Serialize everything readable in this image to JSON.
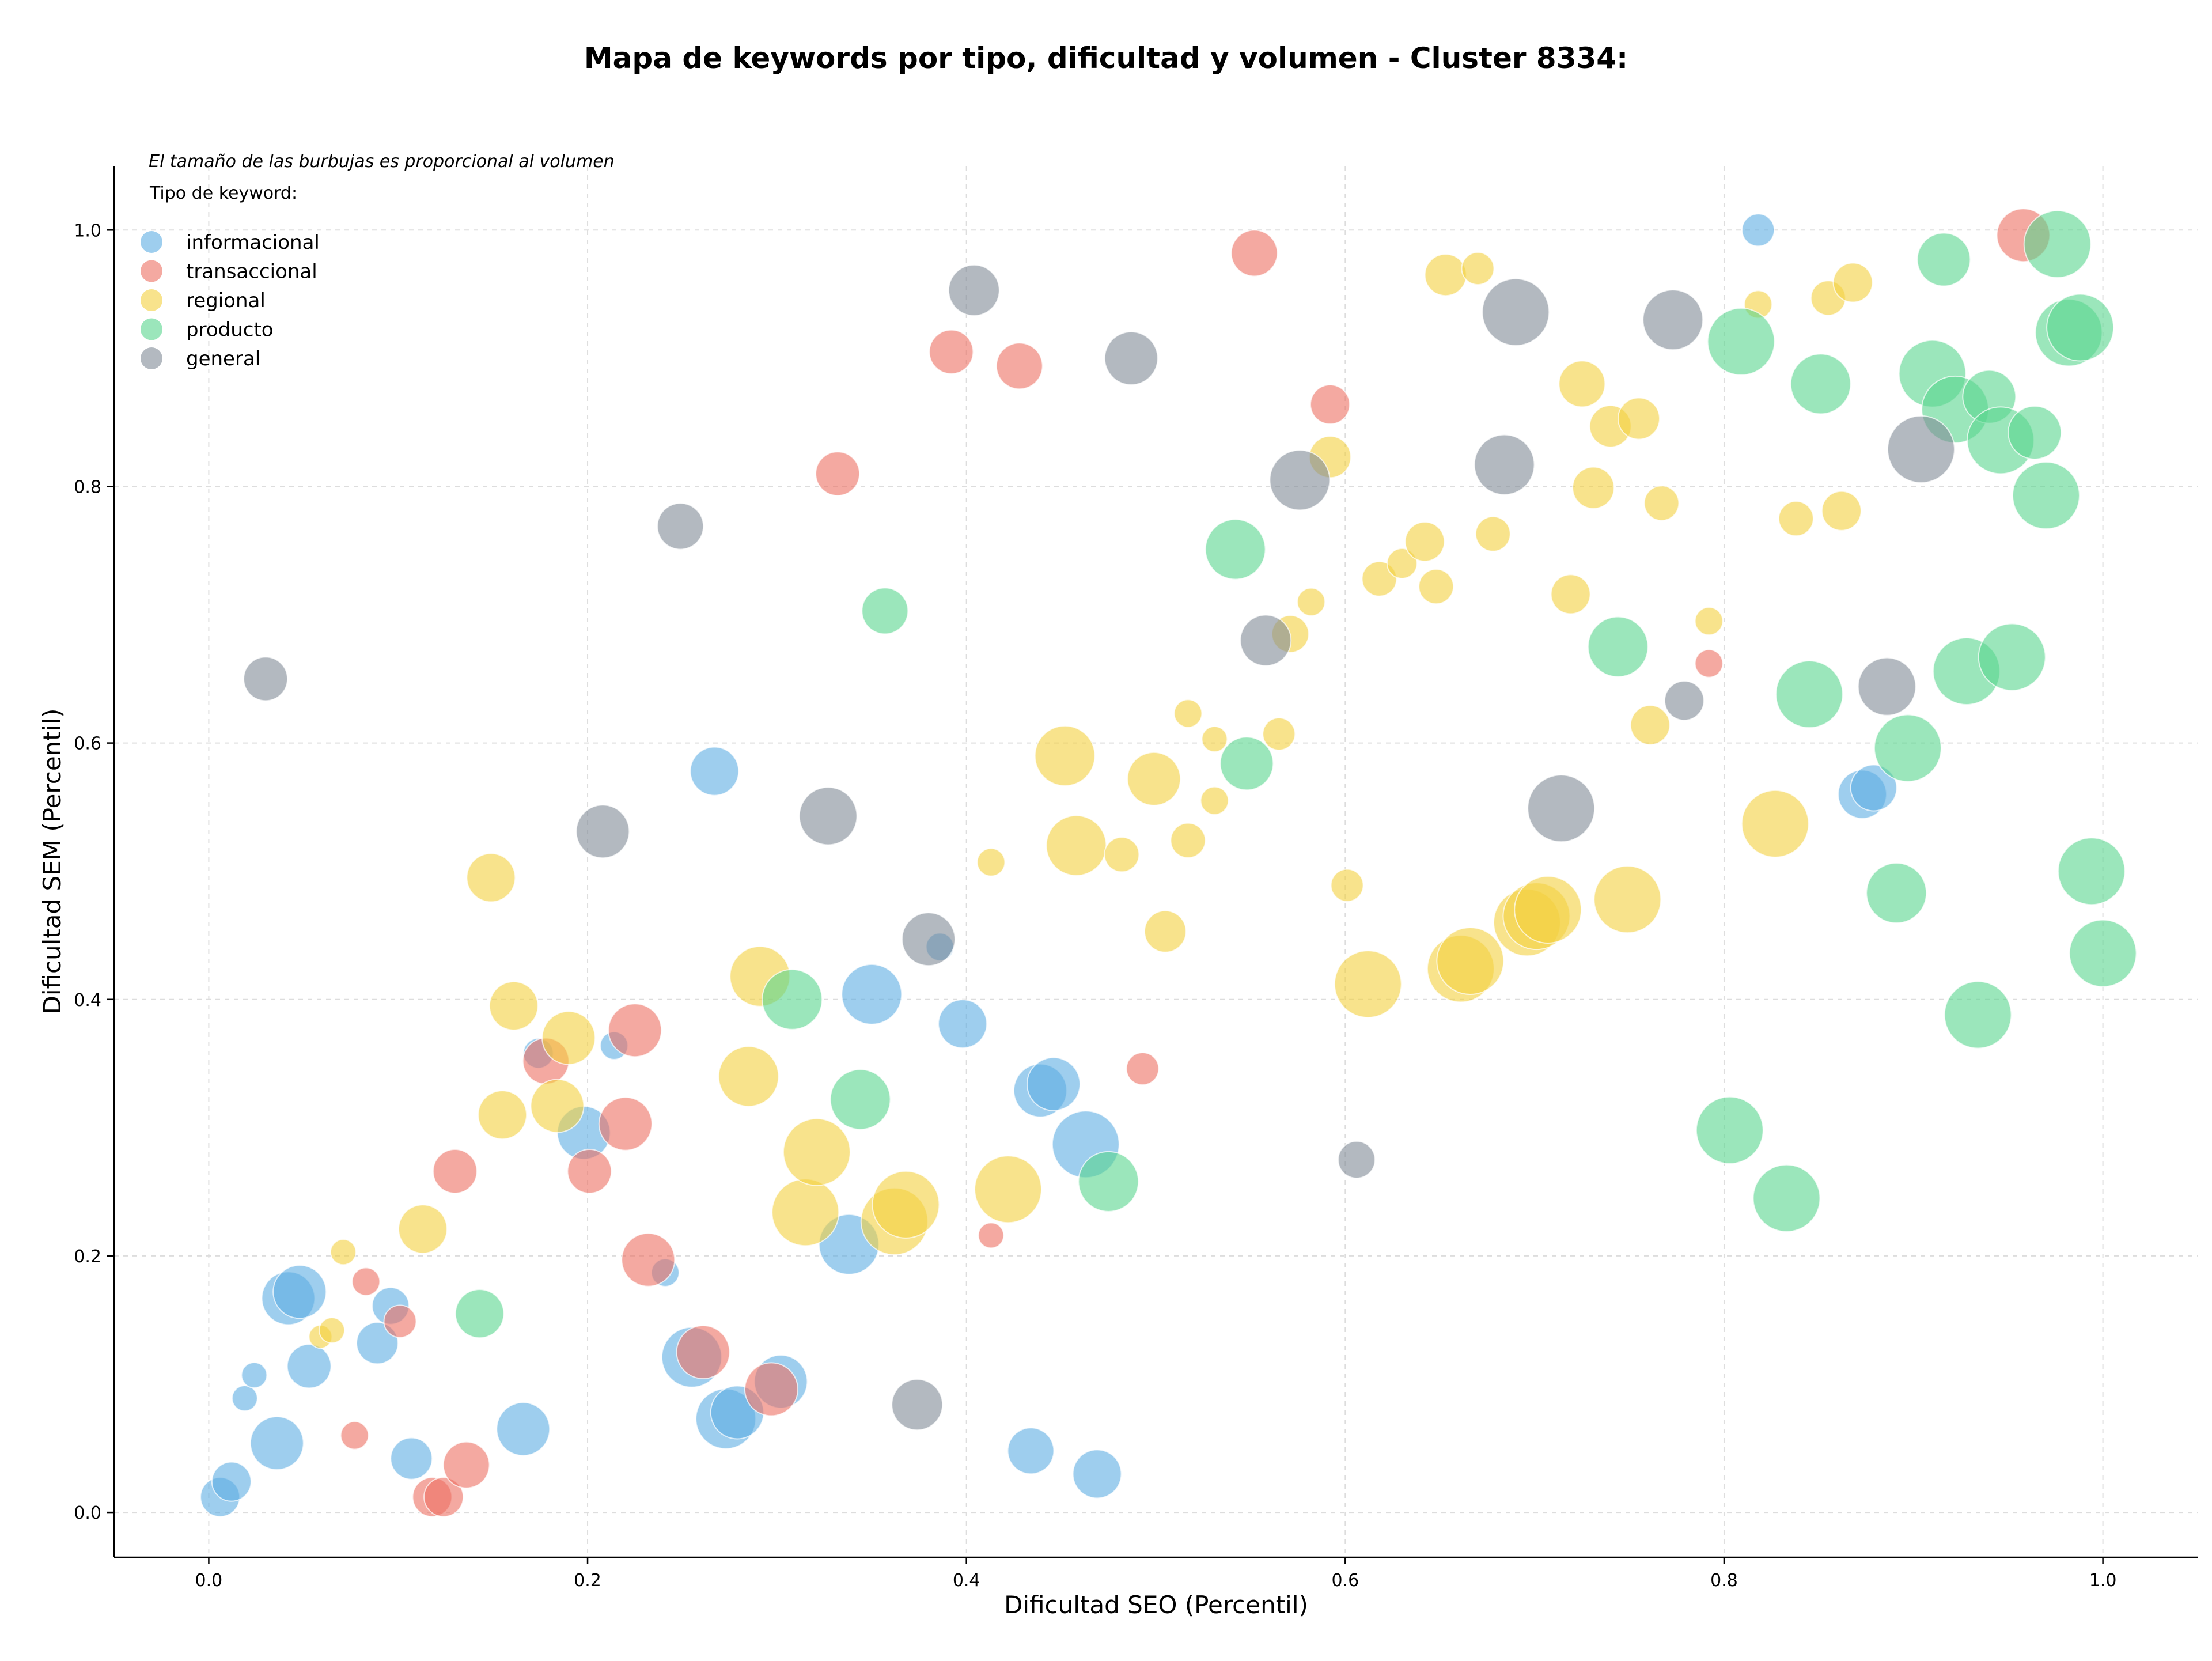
{
  "chart_data": {
    "type": "scatter",
    "title": "Mapa de keywords por tipo, dificultad y volumen - Cluster 8334:",
    "xlabel": "Dificultad SEO (Percentil)",
    "ylabel": "Dificultad SEM (Percentil)",
    "xlim": [
      -0.05,
      1.05
    ],
    "ylim": [
      -0.035,
      1.05
    ],
    "xticks": [
      "0.0",
      "0.2",
      "0.4",
      "0.6",
      "0.8",
      "1.0"
    ],
    "yticks": [
      "0.0",
      "0.2",
      "0.4",
      "0.6",
      "0.8",
      "1.0"
    ],
    "grid": true,
    "size_note": "El tamaño de las burbujas es proporcional al volumen",
    "legend_title": "Tipo de keyword:",
    "legend_position": "top-left",
    "series": [
      {
        "name": "informacional",
        "color": "#5dade2",
        "points": [
          [
            0.006,
            0.012,
            34
          ],
          [
            0.012,
            0.024,
            34
          ],
          [
            0.019,
            0.089,
            22
          ],
          [
            0.024,
            0.107,
            22
          ],
          [
            0.036,
            0.054,
            46
          ],
          [
            0.042,
            0.167,
            46
          ],
          [
            0.048,
            0.172,
            46
          ],
          [
            0.053,
            0.114,
            38
          ],
          [
            0.089,
            0.132,
            36
          ],
          [
            0.096,
            0.161,
            32
          ],
          [
            0.107,
            0.042,
            36
          ],
          [
            0.166,
            0.065,
            46
          ],
          [
            0.174,
            0.358,
            26
          ],
          [
            0.198,
            0.296,
            46
          ],
          [
            0.214,
            0.364,
            24
          ],
          [
            0.241,
            0.187,
            24
          ],
          [
            0.255,
            0.121,
            52
          ],
          [
            0.267,
            0.578,
            42
          ],
          [
            0.273,
            0.073,
            52
          ],
          [
            0.279,
            0.078,
            46
          ],
          [
            0.302,
            0.102,
            46
          ],
          [
            0.338,
            0.209,
            52
          ],
          [
            0.35,
            0.404,
            52
          ],
          [
            0.386,
            0.441,
            24
          ],
          [
            0.398,
            0.381,
            42
          ],
          [
            0.434,
            0.048,
            40
          ],
          [
            0.439,
            0.329,
            46
          ],
          [
            0.446,
            0.334,
            46
          ],
          [
            0.463,
            0.287,
            58
          ],
          [
            0.469,
            0.03,
            42
          ],
          [
            0.818,
            1.0,
            28
          ],
          [
            0.873,
            0.56,
            42
          ],
          [
            0.879,
            0.565,
            40
          ]
        ]
      },
      {
        "name": "transaccional",
        "color": "#ec7063",
        "points": [
          [
            0.077,
            0.06,
            24
          ],
          [
            0.083,
            0.18,
            24
          ],
          [
            0.101,
            0.149,
            28
          ],
          [
            0.118,
            0.012,
            34
          ],
          [
            0.124,
            0.012,
            34
          ],
          [
            0.13,
            0.266,
            38
          ],
          [
            0.136,
            0.037,
            40
          ],
          [
            0.178,
            0.352,
            40
          ],
          [
            0.201,
            0.266,
            38
          ],
          [
            0.22,
            0.303,
            46
          ],
          [
            0.225,
            0.376,
            46
          ],
          [
            0.232,
            0.197,
            46
          ],
          [
            0.261,
            0.125,
            46
          ],
          [
            0.297,
            0.096,
            46
          ],
          [
            0.332,
            0.81,
            38
          ],
          [
            0.392,
            0.905,
            38
          ],
          [
            0.413,
            0.216,
            22
          ],
          [
            0.428,
            0.894,
            40
          ],
          [
            0.493,
            0.346,
            28
          ],
          [
            0.552,
            0.982,
            40
          ],
          [
            0.592,
            0.864,
            34
          ],
          [
            0.792,
            0.662,
            24
          ],
          [
            0.958,
            0.996,
            46
          ]
        ]
      },
      {
        "name": "regional",
        "color": "#f4d03f",
        "points": [
          [
            0.059,
            0.137,
            20
          ],
          [
            0.065,
            0.142,
            22
          ],
          [
            0.071,
            0.203,
            22
          ],
          [
            0.113,
            0.221,
            42
          ],
          [
            0.149,
            0.495,
            42
          ],
          [
            0.155,
            0.31,
            42
          ],
          [
            0.161,
            0.395,
            42
          ],
          [
            0.184,
            0.317,
            46
          ],
          [
            0.19,
            0.37,
            46
          ],
          [
            0.285,
            0.34,
            52
          ],
          [
            0.291,
            0.418,
            52
          ],
          [
            0.315,
            0.234,
            58
          ],
          [
            0.321,
            0.281,
            58
          ],
          [
            0.362,
            0.227,
            58
          ],
          [
            0.368,
            0.24,
            58
          ],
          [
            0.413,
            0.507,
            24
          ],
          [
            0.422,
            0.252,
            58
          ],
          [
            0.452,
            0.59,
            52
          ],
          [
            0.458,
            0.52,
            52
          ],
          [
            0.482,
            0.513,
            30
          ],
          [
            0.499,
            0.572,
            46
          ],
          [
            0.505,
            0.453,
            36
          ],
          [
            0.517,
            0.524,
            30
          ],
          [
            0.517,
            0.623,
            24
          ],
          [
            0.531,
            0.603,
            22
          ],
          [
            0.531,
            0.555,
            24
          ],
          [
            0.565,
            0.607,
            28
          ],
          [
            0.571,
            0.685,
            32
          ],
          [
            0.582,
            0.71,
            24
          ],
          [
            0.592,
            0.823,
            36
          ],
          [
            0.601,
            0.489,
            28
          ],
          [
            0.612,
            0.412,
            58
          ],
          [
            0.618,
            0.728,
            30
          ],
          [
            0.63,
            0.74,
            26
          ],
          [
            0.642,
            0.757,
            34
          ],
          [
            0.648,
            0.722,
            30
          ],
          [
            0.653,
            0.965,
            36
          ],
          [
            0.661,
            0.424,
            58
          ],
          [
            0.666,
            0.43,
            58
          ],
          [
            0.67,
            0.97,
            28
          ],
          [
            0.678,
            0.763,
            30
          ],
          [
            0.696,
            0.46,
            58
          ],
          [
            0.701,
            0.465,
            58
          ],
          [
            0.707,
            0.47,
            58
          ],
          [
            0.719,
            0.716,
            34
          ],
          [
            0.725,
            0.88,
            40
          ],
          [
            0.731,
            0.799,
            36
          ],
          [
            0.74,
            0.847,
            36
          ],
          [
            0.749,
            0.478,
            58
          ],
          [
            0.755,
            0.853,
            36
          ],
          [
            0.761,
            0.614,
            34
          ],
          [
            0.767,
            0.787,
            30
          ],
          [
            0.792,
            0.695,
            24
          ],
          [
            0.818,
            0.942,
            24
          ],
          [
            0.827,
            0.537,
            58
          ],
          [
            0.838,
            0.775,
            30
          ],
          [
            0.855,
            0.947,
            30
          ],
          [
            0.862,
            0.781,
            34
          ],
          [
            0.868,
            0.959,
            34
          ]
        ]
      },
      {
        "name": "producto",
        "color": "#58d68d",
        "points": [
          [
            0.143,
            0.155,
            42
          ],
          [
            0.308,
            0.4,
            52
          ],
          [
            0.344,
            0.322,
            52
          ],
          [
            0.357,
            0.703,
            40
          ],
          [
            0.475,
            0.258,
            52
          ],
          [
            0.542,
            0.751,
            52
          ],
          [
            0.548,
            0.584,
            46
          ],
          [
            0.744,
            0.675,
            52
          ],
          [
            0.803,
            0.298,
            58
          ],
          [
            0.809,
            0.913,
            58
          ],
          [
            0.833,
            0.245,
            58
          ],
          [
            0.845,
            0.638,
            58
          ],
          [
            0.851,
            0.88,
            52
          ],
          [
            0.891,
            0.483,
            52
          ],
          [
            0.897,
            0.596,
            58
          ],
          [
            0.91,
            0.888,
            58
          ],
          [
            0.916,
            0.977,
            46
          ],
          [
            0.922,
            0.86,
            58
          ],
          [
            0.928,
            0.656,
            58
          ],
          [
            0.934,
            0.388,
            58
          ],
          [
            0.94,
            0.87,
            46
          ],
          [
            0.946,
            0.836,
            58
          ],
          [
            0.952,
            0.667,
            58
          ],
          [
            0.964,
            0.842,
            46
          ],
          [
            0.97,
            0.793,
            58
          ],
          [
            0.976,
            0.989,
            58
          ],
          [
            0.982,
            0.92,
            58
          ],
          [
            0.988,
            0.924,
            58
          ],
          [
            0.994,
            0.5,
            58
          ],
          [
            1.0,
            0.436,
            58
          ]
        ]
      },
      {
        "name": "general",
        "color": "#808b96",
        "points": [
          [
            0.03,
            0.65,
            38
          ],
          [
            0.208,
            0.531,
            46
          ],
          [
            0.249,
            0.769,
            40
          ],
          [
            0.327,
            0.543,
            50
          ],
          [
            0.374,
            0.084,
            44
          ],
          [
            0.38,
            0.447,
            46
          ],
          [
            0.404,
            0.953,
            44
          ],
          [
            0.487,
            0.9,
            46
          ],
          [
            0.558,
            0.68,
            44
          ],
          [
            0.576,
            0.805,
            52
          ],
          [
            0.606,
            0.275,
            32
          ],
          [
            0.684,
            0.817,
            52
          ],
          [
            0.69,
            0.936,
            58
          ],
          [
            0.714,
            0.549,
            58
          ],
          [
            0.773,
            0.93,
            52
          ],
          [
            0.779,
            0.633,
            34
          ],
          [
            0.886,
            0.644,
            50
          ],
          [
            0.904,
            0.829,
            58
          ]
        ]
      }
    ]
  }
}
